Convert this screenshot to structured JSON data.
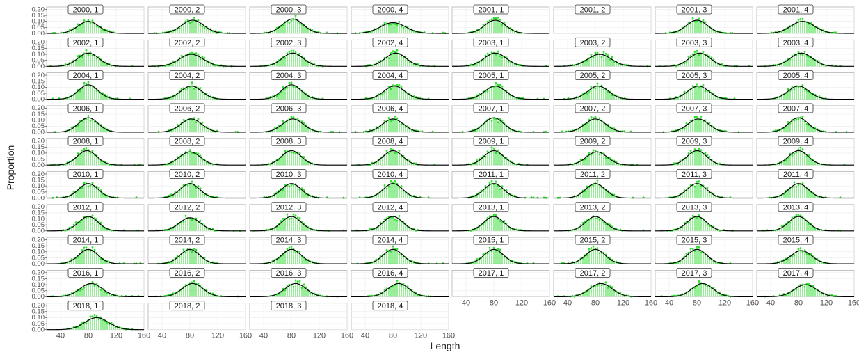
{
  "chart_data": {
    "type": "faceted-bar-line",
    "xlabel": "Length",
    "ylabel": "Proportion",
    "x_ticks": [
      40,
      80,
      120,
      160
    ],
    "y_ticks": [
      0.0,
      0.05,
      0.1,
      0.15,
      0.2
    ],
    "y_tick_labels": [
      "0.00",
      "0.05",
      "0.10",
      "0.15",
      "0.20"
    ],
    "xlim": [
      20,
      160
    ],
    "ylim": [
      0,
      0.22
    ],
    "colors": {
      "observed": "#33dd33",
      "fitted": "#000000",
      "grid": "#ebebeb",
      "panel_border": "#b3b3b3"
    },
    "series": [
      {
        "name": "",
        "kind": "observed bars and points",
        "color": "#33dd33"
      },
      {
        "name": "",
        "kind": "fitted curve",
        "color": "#000000"
      }
    ],
    "panels": [
      {
        "label": "2000, 1",
        "has_data": true,
        "mean": 80,
        "sd": 15,
        "peak": 0.1
      },
      {
        "label": "2000, 2",
        "has_data": true,
        "mean": 84,
        "sd": 16,
        "peak": 0.11
      },
      {
        "label": "2000, 3",
        "has_data": true,
        "mean": 82,
        "sd": 15,
        "peak": 0.12
      },
      {
        "label": "2000, 4",
        "has_data": true,
        "mean": 80,
        "sd": 18,
        "peak": 0.09
      },
      {
        "label": "2001, 1",
        "has_data": true,
        "mean": 82,
        "sd": 15,
        "peak": 0.11
      },
      {
        "label": "2001, 2",
        "has_data": false
      },
      {
        "label": "2001, 3",
        "has_data": true,
        "mean": 80,
        "sd": 15,
        "peak": 0.11
      },
      {
        "label": "2001, 4",
        "has_data": true,
        "mean": 86,
        "sd": 17,
        "peak": 0.1
      },
      {
        "label": "2002, 1",
        "has_data": true,
        "mean": 80,
        "sd": 15,
        "peak": 0.11
      },
      {
        "label": "2002, 2",
        "has_data": true,
        "mean": 82,
        "sd": 17,
        "peak": 0.1
      },
      {
        "label": "2002, 3",
        "has_data": true,
        "mean": 82,
        "sd": 15,
        "peak": 0.11
      },
      {
        "label": "2002, 4",
        "has_data": true,
        "mean": 84,
        "sd": 15,
        "peak": 0.11
      },
      {
        "label": "2003, 1",
        "has_data": true,
        "mean": 82,
        "sd": 16,
        "peak": 0.11
      },
      {
        "label": "2003, 2",
        "has_data": true,
        "mean": 86,
        "sd": 17,
        "peak": 0.1
      },
      {
        "label": "2003, 3",
        "has_data": true,
        "mean": 84,
        "sd": 15,
        "peak": 0.11
      },
      {
        "label": "2003, 4",
        "has_data": true,
        "mean": 84,
        "sd": 16,
        "peak": 0.11
      },
      {
        "label": "2004, 1",
        "has_data": true,
        "mean": 80,
        "sd": 14,
        "peak": 0.12
      },
      {
        "label": "2004, 2",
        "has_data": true,
        "mean": 82,
        "sd": 15,
        "peak": 0.11
      },
      {
        "label": "2004, 3",
        "has_data": true,
        "mean": 80,
        "sd": 14,
        "peak": 0.12
      },
      {
        "label": "2004, 4",
        "has_data": true,
        "mean": 82,
        "sd": 15,
        "peak": 0.11
      },
      {
        "label": "2005, 1",
        "has_data": true,
        "mean": 82,
        "sd": 15,
        "peak": 0.11
      },
      {
        "label": "2005, 2",
        "has_data": true,
        "mean": 84,
        "sd": 15,
        "peak": 0.11
      },
      {
        "label": "2005, 3",
        "has_data": true,
        "mean": 82,
        "sd": 15,
        "peak": 0.11
      },
      {
        "label": "2005, 4",
        "has_data": true,
        "mean": 80,
        "sd": 15,
        "peak": 0.11
      },
      {
        "label": "2006, 1",
        "has_data": true,
        "mean": 80,
        "sd": 14,
        "peak": 0.12
      },
      {
        "label": "2006, 2",
        "has_data": true,
        "mean": 82,
        "sd": 15,
        "peak": 0.11
      },
      {
        "label": "2006, 3",
        "has_data": true,
        "mean": 82,
        "sd": 15,
        "peak": 0.11
      },
      {
        "label": "2006, 4",
        "has_data": true,
        "mean": 80,
        "sd": 15,
        "peak": 0.11
      },
      {
        "label": "2007, 1",
        "has_data": true,
        "mean": 80,
        "sd": 14,
        "peak": 0.12
      },
      {
        "label": "2007, 2",
        "has_data": true,
        "mean": 80,
        "sd": 15,
        "peak": 0.11
      },
      {
        "label": "2007, 3",
        "has_data": true,
        "mean": 82,
        "sd": 15,
        "peak": 0.11
      },
      {
        "label": "2007, 4",
        "has_data": true,
        "mean": 80,
        "sd": 14,
        "peak": 0.12
      },
      {
        "label": "2008, 1",
        "has_data": true,
        "mean": 78,
        "sd": 14,
        "peak": 0.12
      },
      {
        "label": "2008, 2",
        "has_data": true,
        "mean": 80,
        "sd": 15,
        "peak": 0.11
      },
      {
        "label": "2008, 3",
        "has_data": true,
        "mean": 80,
        "sd": 14,
        "peak": 0.12
      },
      {
        "label": "2008, 4",
        "has_data": true,
        "mean": 80,
        "sd": 14,
        "peak": 0.12
      },
      {
        "label": "2009, 1",
        "has_data": true,
        "mean": 80,
        "sd": 14,
        "peak": 0.12
      },
      {
        "label": "2009, 2",
        "has_data": true,
        "mean": 82,
        "sd": 15,
        "peak": 0.11
      },
      {
        "label": "2009, 3",
        "has_data": true,
        "mean": 80,
        "sd": 14,
        "peak": 0.12
      },
      {
        "label": "2009, 4",
        "has_data": true,
        "mean": 80,
        "sd": 14,
        "peak": 0.12
      },
      {
        "label": "2010, 1",
        "has_data": true,
        "mean": 80,
        "sd": 14,
        "peak": 0.12
      },
      {
        "label": "2010, 2",
        "has_data": true,
        "mean": 80,
        "sd": 14,
        "peak": 0.12
      },
      {
        "label": "2010, 3",
        "has_data": true,
        "mean": 80,
        "sd": 14,
        "peak": 0.12
      },
      {
        "label": "2010, 4",
        "has_data": true,
        "mean": 80,
        "sd": 14,
        "peak": 0.12
      },
      {
        "label": "2011, 1",
        "has_data": true,
        "mean": 80,
        "sd": 14,
        "peak": 0.12
      },
      {
        "label": "2011, 2",
        "has_data": true,
        "mean": 80,
        "sd": 14,
        "peak": 0.12
      },
      {
        "label": "2011, 3",
        "has_data": true,
        "mean": 80,
        "sd": 14,
        "peak": 0.12
      },
      {
        "label": "2011, 4",
        "has_data": true,
        "mean": 80,
        "sd": 14,
        "peak": 0.12
      },
      {
        "label": "2012, 1",
        "has_data": true,
        "mean": 80,
        "sd": 14,
        "peak": 0.12
      },
      {
        "label": "2012, 2",
        "has_data": true,
        "mean": 80,
        "sd": 15,
        "peak": 0.11
      },
      {
        "label": "2012, 3",
        "has_data": true,
        "mean": 80,
        "sd": 14,
        "peak": 0.12
      },
      {
        "label": "2012, 4",
        "has_data": true,
        "mean": 80,
        "sd": 14,
        "peak": 0.12
      },
      {
        "label": "2013, 1",
        "has_data": true,
        "mean": 80,
        "sd": 14,
        "peak": 0.12
      },
      {
        "label": "2013, 2",
        "has_data": true,
        "mean": 80,
        "sd": 14,
        "peak": 0.12
      },
      {
        "label": "2013, 3",
        "has_data": true,
        "mean": 80,
        "sd": 14,
        "peak": 0.12
      },
      {
        "label": "2013, 4",
        "has_data": true,
        "mean": 80,
        "sd": 14,
        "peak": 0.12
      },
      {
        "label": "2014, 1",
        "has_data": true,
        "mean": 80,
        "sd": 14,
        "peak": 0.12
      },
      {
        "label": "2014, 2",
        "has_data": true,
        "mean": 80,
        "sd": 14,
        "peak": 0.12
      },
      {
        "label": "2014, 3",
        "has_data": true,
        "mean": 80,
        "sd": 14,
        "peak": 0.12
      },
      {
        "label": "2014, 4",
        "has_data": true,
        "mean": 80,
        "sd": 14,
        "peak": 0.12
      },
      {
        "label": "2015, 1",
        "has_data": true,
        "mean": 80,
        "sd": 14,
        "peak": 0.12
      },
      {
        "label": "2015, 2",
        "has_data": true,
        "mean": 80,
        "sd": 14,
        "peak": 0.12
      },
      {
        "label": "2015, 3",
        "has_data": true,
        "mean": 80,
        "sd": 14,
        "peak": 0.12
      },
      {
        "label": "2015, 4",
        "has_data": true,
        "mean": 84,
        "sd": 15,
        "peak": 0.11
      },
      {
        "label": "2016, 1",
        "has_data": true,
        "mean": 84,
        "sd": 16,
        "peak": 0.11
      },
      {
        "label": "2016, 2",
        "has_data": true,
        "mean": 84,
        "sd": 15,
        "peak": 0.11
      },
      {
        "label": "2016, 3",
        "has_data": true,
        "mean": 86,
        "sd": 15,
        "peak": 0.11
      },
      {
        "label": "2016, 4",
        "has_data": true,
        "mean": 88,
        "sd": 15,
        "peak": 0.11
      },
      {
        "label": "2017, 1",
        "has_data": false
      },
      {
        "label": "2017, 2",
        "has_data": true,
        "mean": 88,
        "sd": 16,
        "peak": 0.11
      },
      {
        "label": "2017, 3",
        "has_data": true,
        "mean": 88,
        "sd": 15,
        "peak": 0.11
      },
      {
        "label": "2017, 4",
        "has_data": true,
        "mean": 90,
        "sd": 16,
        "peak": 0.1
      },
      {
        "label": "2018, 1",
        "has_data": true,
        "mean": 92,
        "sd": 17,
        "peak": 0.1
      },
      {
        "label": "2018, 2",
        "has_data": false
      },
      {
        "label": "2018, 3",
        "has_data": false
      },
      {
        "label": "2018, 4",
        "has_data": false
      }
    ]
  }
}
